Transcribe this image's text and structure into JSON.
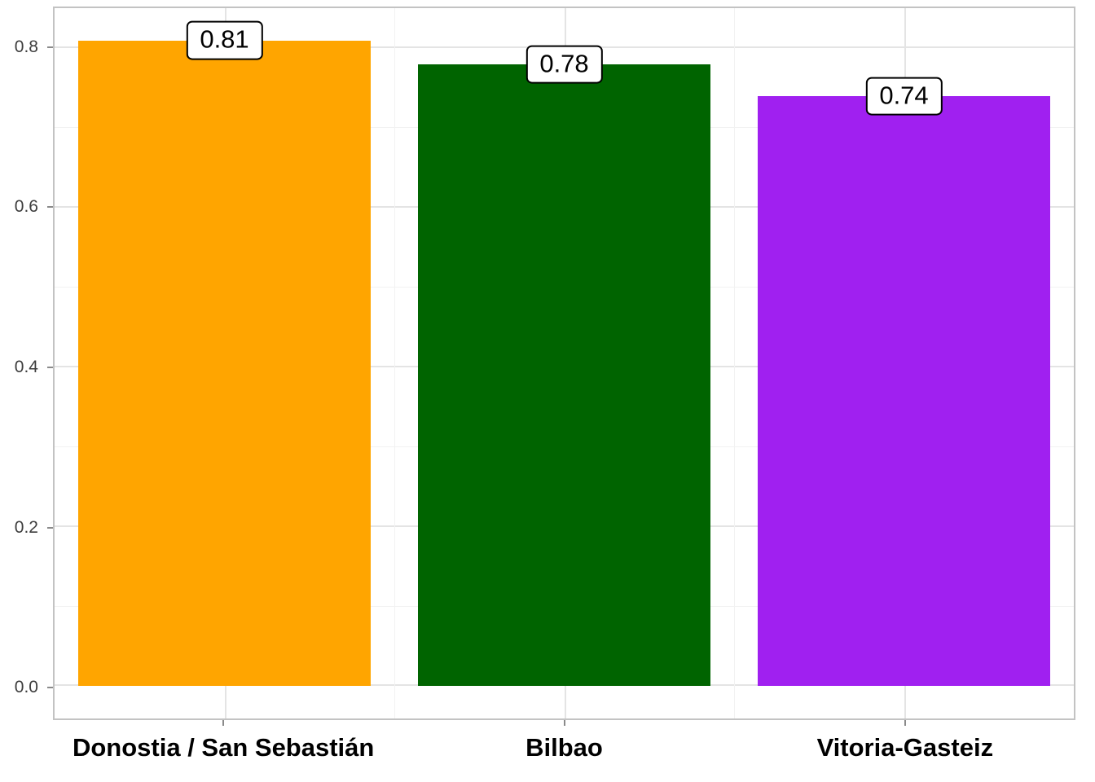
{
  "chart_data": {
    "type": "bar",
    "categories": [
      "Donostia / San Sebastián",
      "Bilbao",
      "Vitoria-Gasteiz"
    ],
    "values": [
      0.81,
      0.78,
      0.74
    ],
    "value_labels": [
      "0.81",
      "0.78",
      "0.74"
    ],
    "bar_colors": [
      "#FFA500",
      "#006400",
      "#A020F0"
    ],
    "title": "",
    "xlabel": "",
    "ylabel": "",
    "ylim": [
      0,
      0.85
    ],
    "yticks": [
      "0.0",
      "0.2",
      "0.4",
      "0.6",
      "0.8"
    ],
    "grid": "on",
    "legend": "none"
  },
  "style": {
    "background": "#ffffff",
    "panel_background": "#ffffff",
    "panel_border": "#c3c3c3",
    "grid_major": "#e4e4e4",
    "grid_minor": "#f2f2f2",
    "axis_text": "#3d3d3d",
    "label_box_border": "#000000",
    "label_box_fill": "#ffffff"
  }
}
